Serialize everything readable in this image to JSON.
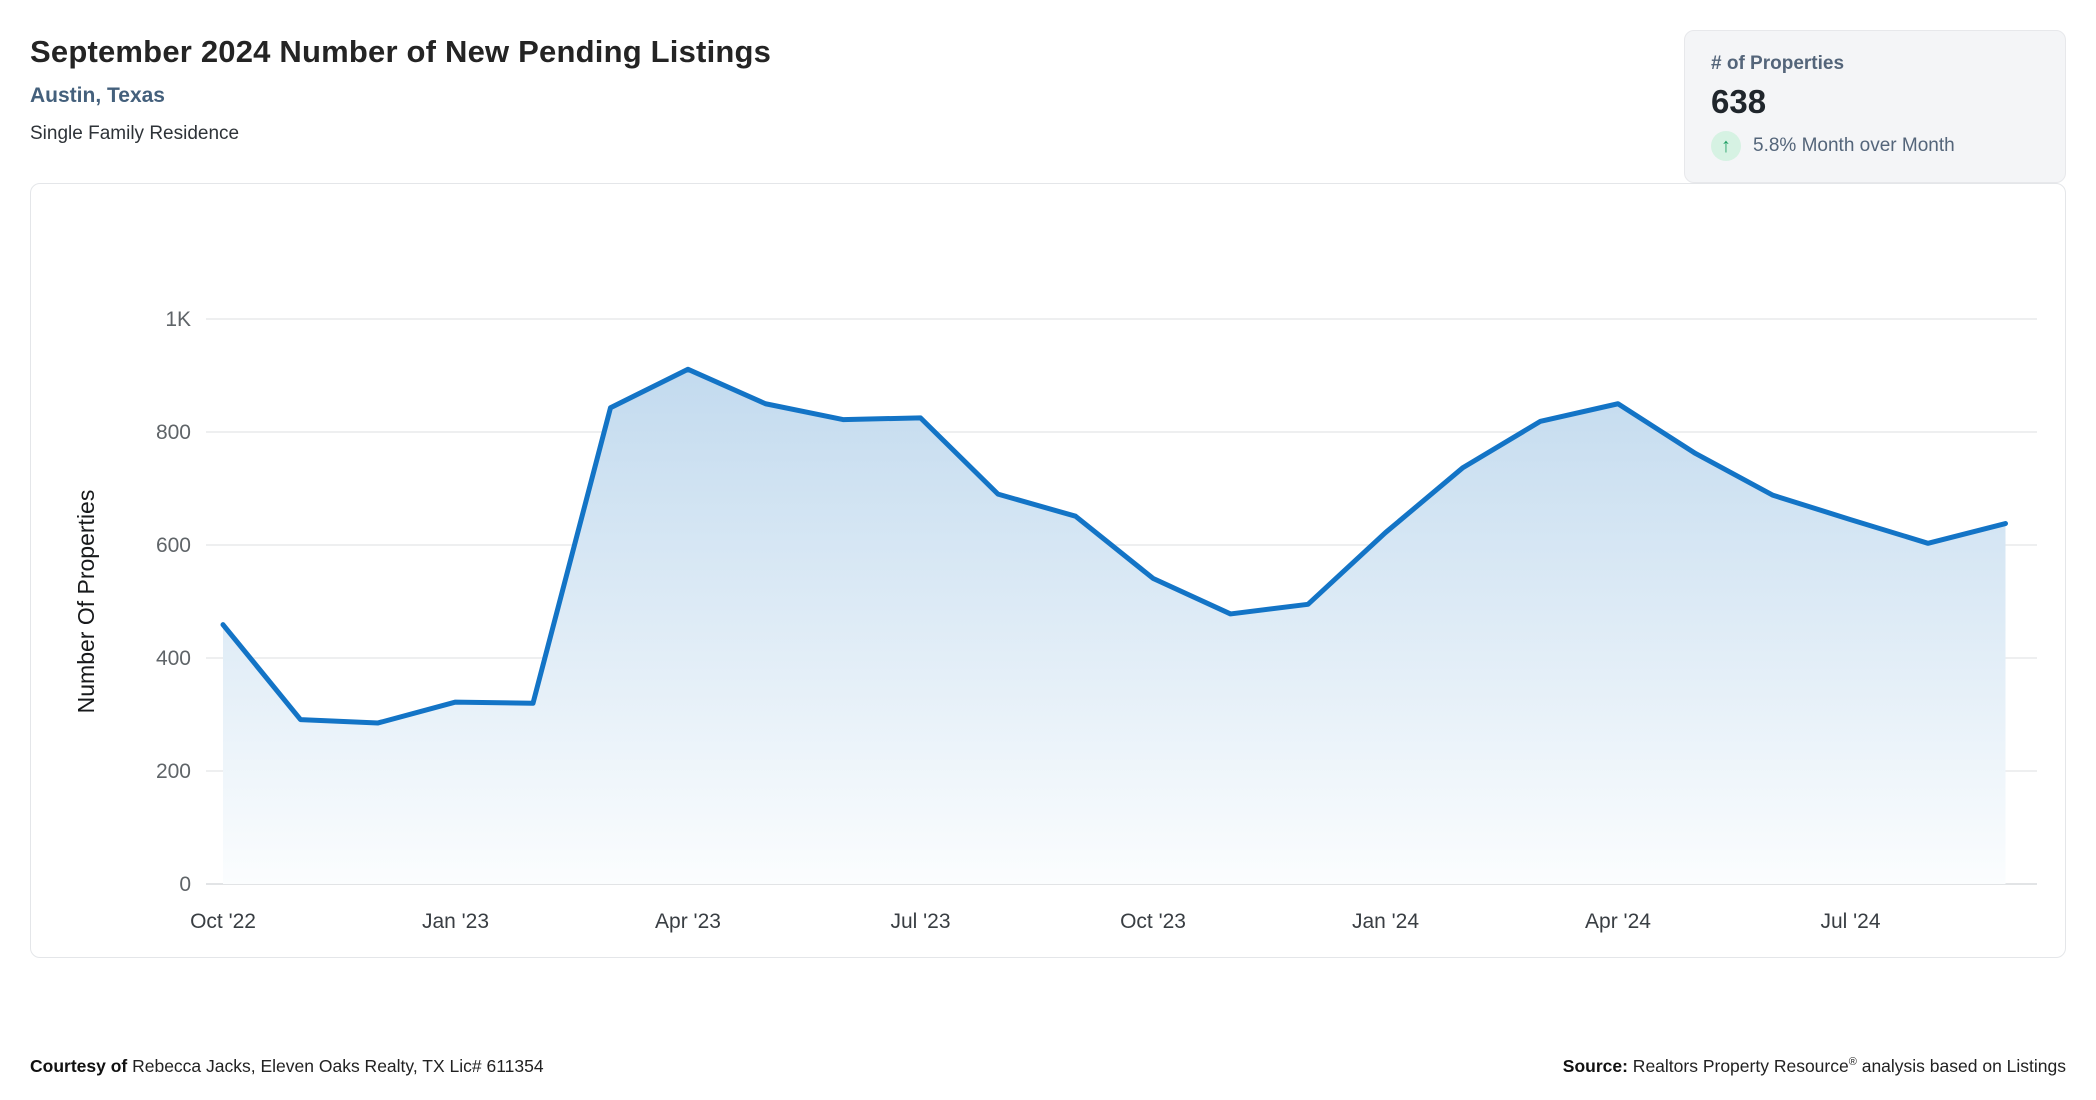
{
  "header": {
    "title": "September 2024 Number of New Pending Listings",
    "location": "Austin, Texas",
    "property_type": "Single Family Residence"
  },
  "stat_card": {
    "label": "# of Properties",
    "value": "638",
    "arrow_icon": "up-arrow",
    "arrow_glyph": "↑",
    "change_text": "5.8% Month over Month",
    "arrow_color": "#1d9e62",
    "arrow_bg_color": "#d6f2e3"
  },
  "chart_data": {
    "type": "area",
    "title": "September 2024 Number of New Pending Listings",
    "xlabel": "",
    "ylabel": "Number Of Properties",
    "x": [
      "Oct '22",
      "Nov '22",
      "Dec '22",
      "Jan '23",
      "Feb '23",
      "Mar '23",
      "Apr '23",
      "May '23",
      "Jun '23",
      "Jul '23",
      "Aug '23",
      "Sep '23",
      "Oct '23",
      "Nov '23",
      "Dec '23",
      "Jan '24",
      "Feb '24",
      "Mar '24",
      "Apr '24",
      "May '24",
      "Jun '24",
      "Jul '24",
      "Aug '24",
      "Sep '24"
    ],
    "values": [
      459,
      291,
      285,
      322,
      320,
      843,
      911,
      850,
      822,
      825,
      690,
      651,
      541,
      478,
      495,
      622,
      737,
      819,
      850,
      762,
      688,
      645,
      603,
      638
    ],
    "x_tick_labels": [
      "Oct '22",
      "Jan '23",
      "Apr '23",
      "Jul '23",
      "Oct '23",
      "Jan '24",
      "Apr '24",
      "Jul '24"
    ],
    "y_ticks": [
      {
        "label": "0",
        "value": 0
      },
      {
        "label": "200",
        "value": 200
      },
      {
        "label": "400",
        "value": 400
      },
      {
        "label": "600",
        "value": 600
      },
      {
        "label": "800",
        "value": 800
      },
      {
        "label": "1K",
        "value": 1000
      }
    ],
    "ylim": [
      0,
      1000
    ],
    "grid": true,
    "legend": "none",
    "line_color": "#1374c6",
    "area_top_color": "#bdd7ed",
    "area_bottom_color": "#fbfdfe"
  },
  "footer": {
    "courtesy_bold": "Courtesy of",
    "courtesy_text": " Rebecca Jacks, Eleven Oaks Realty, TX Lic# 611354",
    "source_bold": "Source:",
    "source_text_pre": " Realtors Property Resource",
    "source_reg_mark": "®",
    "source_text_post": " analysis based on Listings"
  }
}
